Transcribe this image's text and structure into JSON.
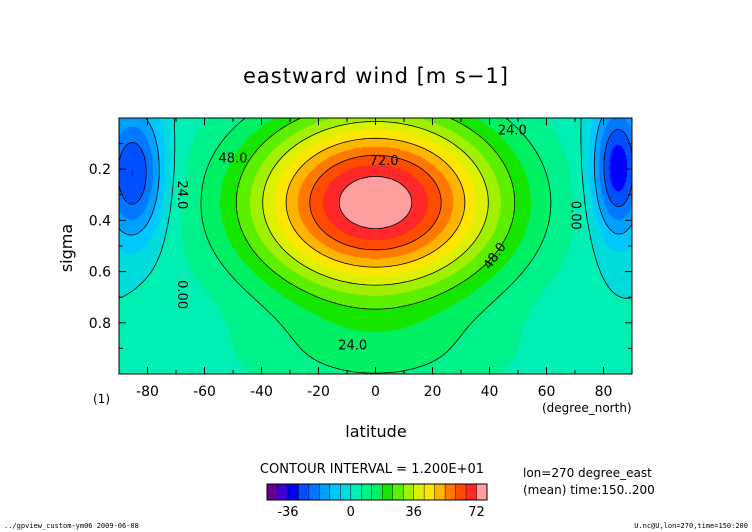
{
  "chart_data": {
    "type": "contour",
    "title": "eastward wind [m s−1]",
    "xlabel": "latitude",
    "xunits": "(degree_north)",
    "ylabel": "sigma",
    "yunits": "(1)",
    "xlim": [
      -90,
      90
    ],
    "ylim": [
      1.0,
      0.0
    ],
    "x_ticks": [
      -80,
      -60,
      -40,
      -20,
      0,
      20,
      40,
      60,
      80
    ],
    "y_ticks": [
      0.2,
      0.4,
      0.6,
      0.8
    ],
    "contour_interval_text": "CONTOUR INTERVAL = 1.200E+01",
    "contour_interval": 12,
    "contour_labels": [
      {
        "text": "72.0",
        "lat": 3,
        "sigma": 0.17
      },
      {
        "text": "48.0",
        "lat": -50,
        "sigma": 0.16
      },
      {
        "text": "48.0",
        "lat": 42,
        "sigma": 0.54
      },
      {
        "text": "24.0",
        "lat": 48,
        "sigma": 0.05
      },
      {
        "text": "24.0",
        "lat": -68,
        "sigma": 0.3
      },
      {
        "text": "24.0",
        "lat": -8,
        "sigma": 0.89
      },
      {
        "text": "0.00",
        "lat": 70,
        "sigma": 0.38
      },
      {
        "text": "0.00",
        "lat": -68,
        "sigma": 0.69
      }
    ],
    "colorbar_ticks": [
      -36,
      0,
      36,
      72
    ],
    "info_lines": [
      "lon=270 degree_east",
      "(mean) time:150..200"
    ],
    "field_peaks": [
      {
        "lat": 0,
        "sigma": 0.33,
        "value": 78
      },
      {
        "lat": -85,
        "sigma": 0.22,
        "value": -32
      },
      {
        "lat": 85,
        "sigma": 0.2,
        "value": -36
      }
    ]
  },
  "colors": {
    "levels": [
      -48,
      -42,
      -36,
      -30,
      -24,
      -18,
      -12,
      -6,
      0,
      6,
      12,
      18,
      24,
      30,
      36,
      42,
      48,
      54,
      60,
      66,
      72,
      78
    ],
    "bar_colors": [
      "#640096",
      "#3c00d2",
      "#0000ff",
      "#0050ff",
      "#0078ff",
      "#00a0ff",
      "#00c8ff",
      "#00dcdc",
      "#00f0b4",
      "#00f08c",
      "#00f064",
      "#14e600",
      "#5af000",
      "#a0f000",
      "#dcf000",
      "#ffe600",
      "#ffb400",
      "#ff7800",
      "#ff4b00",
      "#ff2828",
      "#ff9e9e"
    ]
  },
  "footer": {
    "left": "../gpview_custom-ym06  2009-06-08",
    "right": "U.nc@U,lon=270,time=150:200"
  }
}
